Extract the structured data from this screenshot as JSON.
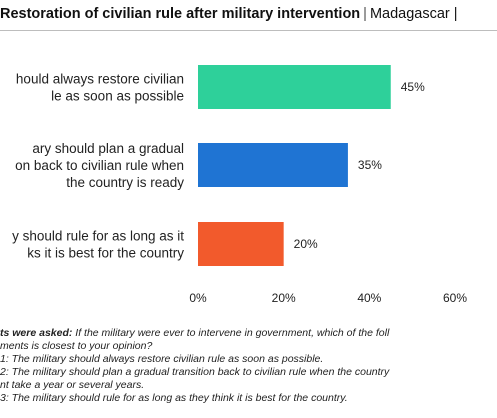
{
  "title": {
    "bold": "Restoration of civilian rule after military intervention",
    "separator": "|",
    "country": "Madagascar |"
  },
  "chart_data": {
    "type": "bar",
    "orientation": "horizontal",
    "categories": [
      [
        "hould always restore civilian",
        "le as soon as possible"
      ],
      [
        "ary should plan a gradual",
        "on back to civilian rule when",
        " the country is ready"
      ],
      [
        "y should rule for as long as it",
        "ks it is best for the country"
      ]
    ],
    "values": [
      45,
      35,
      20
    ],
    "value_labels": [
      "45%",
      "35%",
      "20%"
    ],
    "colors": [
      "#2ed09a",
      "#1f74d3",
      "#f25a2c"
    ],
    "xlim": [
      0,
      60
    ],
    "x_ticks": [
      0,
      20,
      40,
      60
    ],
    "x_tick_labels": [
      "0%",
      "20%",
      "40%",
      "60%"
    ],
    "grid": false,
    "legend": "none"
  },
  "notes": {
    "question_lead": "ts were asked:",
    "question_text": " If the military were ever to intervene in government, which of the foll",
    "question_text_2": "ments is closest to your opinion?",
    "statement_1": "1: The military should always restore civilian rule as soon as possible.",
    "statement_2": "2: The military should plan a gradual transition back to civilian rule when the country",
    "statement_2_cont": "nt take a year or several years.",
    "statement_3": "3: The military should rule for as long as they think it is best for the country."
  }
}
